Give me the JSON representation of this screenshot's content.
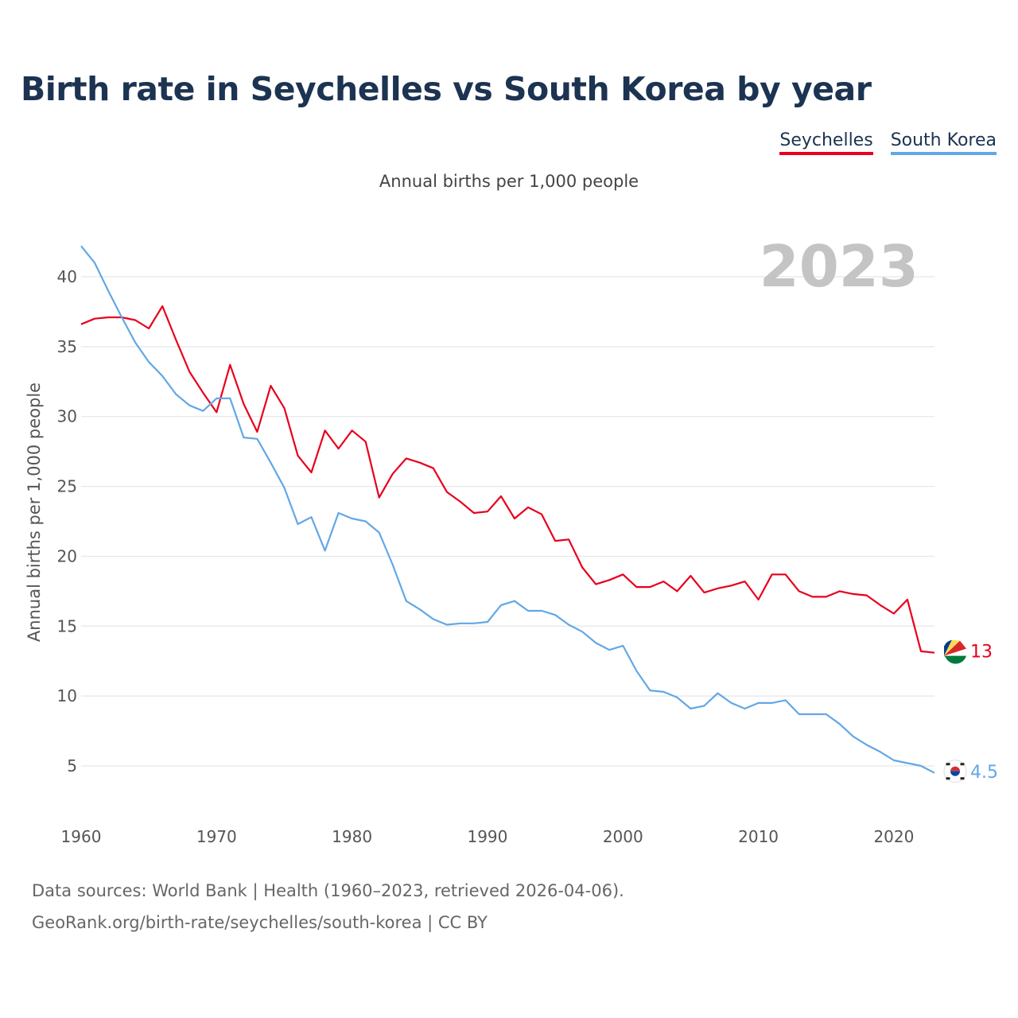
{
  "title": "Birth rate in Seychelles vs South Korea by year",
  "subtitle": "Annual births per 1,000 people",
  "legend": [
    {
      "label": "Seychelles",
      "color": "#e8001c"
    },
    {
      "label": "South Korea",
      "color": "#63a7e6"
    }
  ],
  "footer": {
    "line1": "Data sources: World Bank | Health (1960–2023, retrieved 2026-04-06).",
    "line2": "GeoRank.org/birth-rate/seychelles/south-korea | CC BY"
  },
  "chart_data": {
    "type": "line",
    "title": "Birth rate in Seychelles vs South Korea by year",
    "ylabel": "Annual births per 1,000 people",
    "xlabel": "",
    "year_watermark": "2023",
    "xlim": [
      1960,
      2023
    ],
    "ylim": [
      2,
      43
    ],
    "xticks": [
      1960,
      1970,
      1980,
      1990,
      2000,
      2010,
      2020
    ],
    "yticks": [
      5,
      10,
      15,
      20,
      25,
      30,
      35,
      40
    ],
    "grid": true,
    "legend_position": "top-right",
    "x": [
      1960,
      1961,
      1962,
      1963,
      1964,
      1965,
      1966,
      1967,
      1968,
      1969,
      1970,
      1971,
      1972,
      1973,
      1974,
      1975,
      1976,
      1977,
      1978,
      1979,
      1980,
      1981,
      1982,
      1983,
      1984,
      1985,
      1986,
      1987,
      1988,
      1989,
      1990,
      1991,
      1992,
      1993,
      1994,
      1995,
      1996,
      1997,
      1998,
      1999,
      2000,
      2001,
      2002,
      2003,
      2004,
      2005,
      2006,
      2007,
      2008,
      2009,
      2010,
      2011,
      2012,
      2013,
      2014,
      2015,
      2016,
      2017,
      2018,
      2019,
      2020,
      2021,
      2022,
      2023
    ],
    "series": [
      {
        "name": "Seychelles",
        "color": "#e8001c",
        "end_label": "13",
        "values": [
          36.6,
          37.0,
          37.1,
          37.1,
          36.9,
          36.3,
          37.9,
          35.5,
          33.2,
          31.7,
          30.3,
          33.7,
          30.9,
          28.9,
          32.2,
          30.6,
          27.2,
          26.0,
          29.0,
          27.7,
          29.0,
          28.2,
          24.2,
          25.9,
          27.0,
          26.7,
          26.3,
          24.6,
          23.9,
          23.1,
          23.2,
          24.3,
          22.7,
          23.5,
          23.0,
          21.1,
          21.2,
          19.2,
          18.0,
          18.3,
          18.7,
          17.8,
          17.8,
          18.2,
          17.5,
          18.6,
          17.4,
          17.7,
          17.9,
          18.2,
          16.9,
          18.7,
          18.7,
          17.5,
          17.1,
          17.1,
          17.5,
          17.3,
          17.2,
          16.5,
          15.9,
          16.9,
          13.2,
          13.1
        ]
      },
      {
        "name": "South Korea",
        "color": "#63a7e6",
        "end_label": "4.5",
        "values": [
          42.2,
          41.0,
          39.0,
          37.1,
          35.3,
          33.9,
          32.9,
          31.6,
          30.8,
          30.4,
          31.3,
          31.3,
          28.5,
          28.4,
          26.7,
          24.9,
          22.3,
          22.8,
          20.4,
          23.1,
          22.7,
          22.5,
          21.7,
          19.4,
          16.8,
          16.2,
          15.5,
          15.1,
          15.2,
          15.2,
          15.3,
          16.5,
          16.8,
          16.1,
          16.1,
          15.8,
          15.1,
          14.6,
          13.8,
          13.3,
          13.6,
          11.8,
          10.4,
          10.3,
          9.9,
          9.1,
          9.3,
          10.2,
          9.5,
          9.1,
          9.5,
          9.5,
          9.7,
          8.7,
          8.7,
          8.7,
          8.0,
          7.1,
          6.5,
          6.0,
          5.4,
          5.2,
          5.0,
          4.5
        ]
      }
    ]
  }
}
